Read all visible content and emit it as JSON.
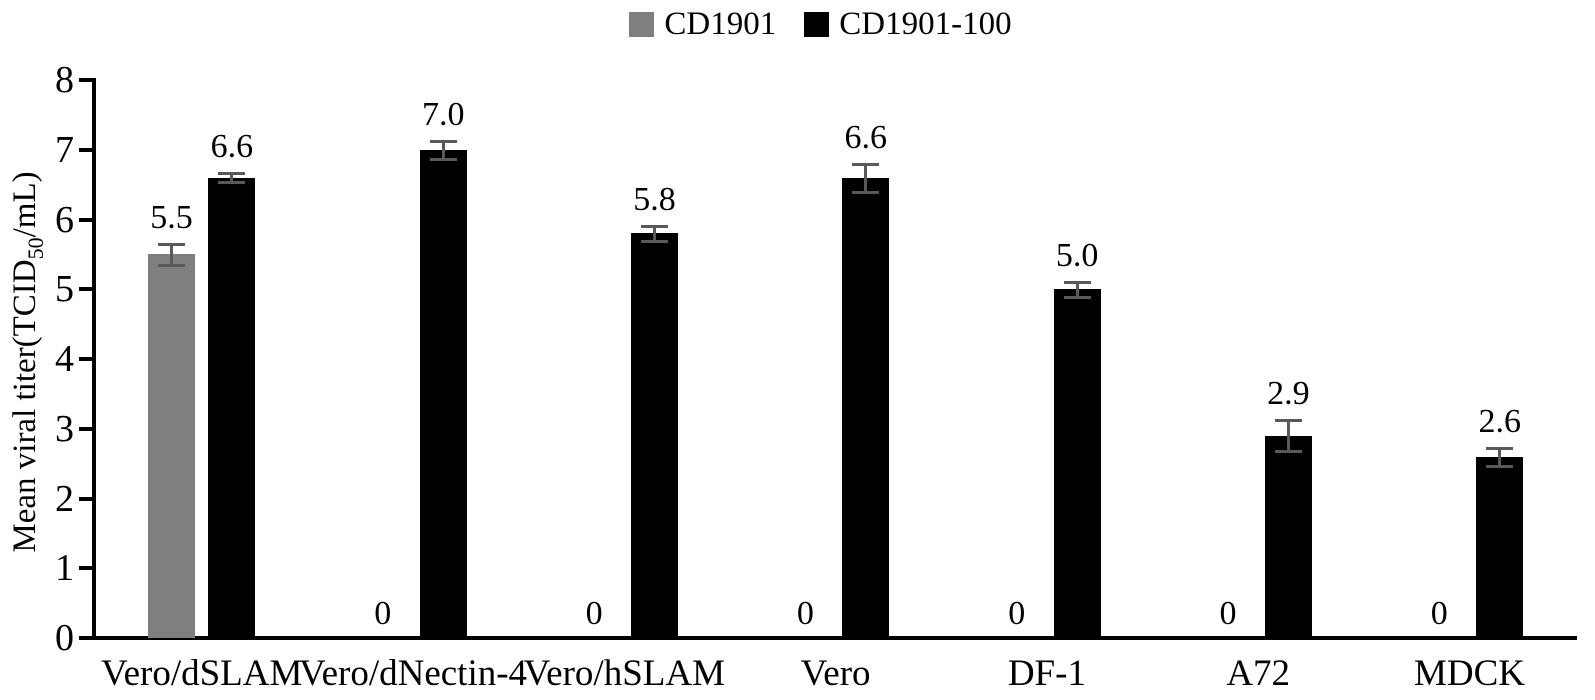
{
  "chart_data": {
    "type": "bar",
    "title": "",
    "categories": [
      "Vero/dSLAM",
      "Vero/dNectin-4",
      "Vero/hSLAM",
      "Vero",
      "DF-1",
      "A72",
      "MDCK"
    ],
    "series": [
      {
        "name": "CD1901",
        "color": "#7F7F7F",
        "values": [
          5.5,
          0,
          0,
          0,
          0,
          0,
          0
        ],
        "errors": [
          0.15,
          0,
          0,
          0,
          0,
          0,
          0
        ],
        "value_labels": [
          "5.5",
          "0",
          "0",
          "0",
          "0",
          "0",
          "0"
        ]
      },
      {
        "name": "CD1901-100",
        "color": "#000000",
        "values": [
          6.6,
          7.0,
          5.8,
          6.6,
          5.0,
          2.9,
          2.6
        ],
        "errors": [
          0.06,
          0.13,
          0.11,
          0.2,
          0.11,
          0.22,
          0.13
        ],
        "value_labels": [
          "6.6",
          "7.0",
          "5.8",
          "6.6",
          "5.0",
          "2.9",
          "2.6"
        ]
      }
    ],
    "xlabel": "",
    "ylabel_parts": {
      "pre": "Mean viral titer(TCID",
      "sub": "50",
      "post": "/mL)"
    },
    "ylim": [
      0,
      8
    ],
    "yticks": [
      "0",
      "1",
      "2",
      "3",
      "4",
      "5",
      "6",
      "7",
      "8"
    ],
    "grid": false,
    "legend_position": "top-center",
    "error_bar_color": "#595959",
    "background": "#FFFFFF"
  }
}
